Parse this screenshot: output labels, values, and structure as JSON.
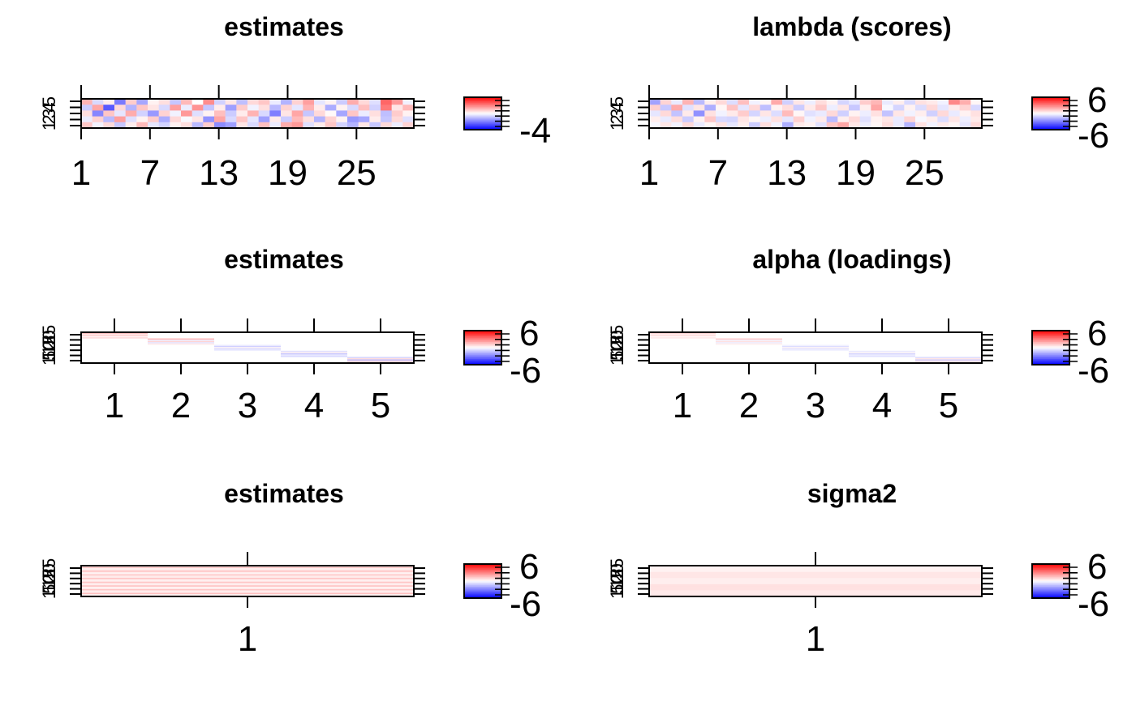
{
  "figure": {
    "colorscale": {
      "low": "#0000ff",
      "mid": "#ffffff",
      "high": "#ff0000"
    }
  },
  "chart_data": [
    {
      "type": "heatmap",
      "title": "estimates",
      "xlabel": "",
      "ylabel": "",
      "x_ticks": [
        "1",
        "7",
        "13",
        "19",
        "25"
      ],
      "x_tick_positions": [
        1,
        7,
        13,
        19,
        25
      ],
      "x_range": [
        1,
        30
      ],
      "y_ticks": [
        "5",
        "4",
        "3",
        "2",
        "1"
      ],
      "y_range": [
        1,
        5
      ],
      "colorbar_labels": [
        "-4"
      ],
      "colorbar_range": [
        -4,
        4
      ],
      "n_cols": 30,
      "n_rows": 5,
      "values": [
        [
          1.2,
          -0.6,
          0.3,
          -2.1,
          0.8,
          -1.4,
          0.2,
          0.5,
          -0.9,
          1.1,
          0.0,
          1.8,
          -0.7,
          0.4,
          -1.0,
          0.6,
          0.9,
          -0.3,
          -1.2,
          0.7,
          1.5,
          -0.4,
          0.2,
          -0.8,
          1.3,
          0.6,
          -0.5,
          2.4,
          1.6,
          -0.2
        ],
        [
          -0.8,
          1.4,
          -2.6,
          0.6,
          -1.2,
          0.9,
          0.4,
          -0.6,
          1.5,
          -0.3,
          1.7,
          -0.9,
          0.3,
          -1.5,
          0.8,
          -0.2,
          0.5,
          -1.1,
          0.7,
          -0.4,
          1.2,
          0.3,
          -1.3,
          0.2,
          -0.6,
          1.0,
          -0.7,
          2.1,
          0.4,
          1.1
        ],
        [
          0.5,
          -1.9,
          0.9,
          -0.4,
          1.3,
          -0.7,
          -1.6,
          0.7,
          -0.2,
          1.6,
          -0.5,
          0.2,
          1.0,
          -0.8,
          0.3,
          1.2,
          -0.6,
          -2.0,
          0.4,
          1.4,
          -0.9,
          0.6,
          0.1,
          -1.4,
          0.9,
          -0.3,
          0.5,
          -1.0,
          0.8,
          0.2
        ],
        [
          -0.3,
          0.7,
          -1.1,
          1.5,
          -0.5,
          0.2,
          0.8,
          -1.3,
          0.6,
          -0.1,
          0.4,
          -1.7,
          1.4,
          -0.6,
          0.9,
          -0.4,
          -1.5,
          0.3,
          -0.8,
          1.1,
          0.5,
          -1.2,
          0.7,
          0.2,
          -1.6,
          -1.4,
          0.3,
          -0.9,
          0.6,
          -0.5
        ],
        [
          0.9,
          -0.2,
          0.6,
          -0.9,
          0.3,
          1.1,
          -0.4,
          -0.7,
          0.2,
          0.5,
          -1.1,
          0.8,
          -1.8,
          -1.5,
          0.4,
          -0.6,
          1.0,
          -0.3,
          1.3,
          1.6,
          -0.5,
          0.3,
          0.9,
          -0.7,
          -1.2,
          0.4,
          -0.9,
          0.6,
          -0.3,
          0.7
        ]
      ]
    },
    {
      "type": "heatmap",
      "title": "lambda (scores)",
      "xlabel": "",
      "ylabel": "",
      "x_ticks": [
        "1",
        "7",
        "13",
        "19",
        "25"
      ],
      "x_tick_positions": [
        1,
        7,
        13,
        19,
        25
      ],
      "x_range": [
        1,
        30
      ],
      "y_ticks": [
        "5",
        "4",
        "3",
        "2",
        "1"
      ],
      "y_range": [
        1,
        5
      ],
      "colorbar_labels": [
        "6",
        "-6"
      ],
      "colorbar_range": [
        -6,
        6
      ],
      "n_cols": 30,
      "n_rows": 5,
      "values": [
        [
          -2.2,
          1.0,
          -0.5,
          1.8,
          -1.6,
          0.4,
          0.9,
          -0.8,
          1.5,
          -0.3,
          0.2,
          2.0,
          -1.1,
          0.6,
          -0.4,
          0.8,
          0.3,
          -1.0,
          -0.6,
          1.2,
          1.7,
          -0.5,
          0.4,
          -0.9,
          0.7,
          0.5,
          -0.3,
          2.8,
          1.9,
          0.2
        ],
        [
          1.1,
          -1.3,
          2.0,
          -0.7,
          0.6,
          -1.9,
          0.2,
          1.4,
          -0.6,
          0.9,
          -1.5,
          0.3,
          0.8,
          -1.2,
          0.5,
          1.3,
          -0.4,
          0.6,
          -1.3,
          0.4,
          2.1,
          -0.2,
          -1.0,
          0.3,
          -0.8,
          0.9,
          -0.6,
          0.5,
          1.0,
          -0.9
        ],
        [
          -0.6,
          0.9,
          -1.4,
          0.5,
          -2.6,
          0.7,
          -0.3,
          0.5,
          1.2,
          -1.0,
          0.6,
          -0.8,
          1.6,
          0.2,
          -0.7,
          -0.5,
          0.9,
          -1.1,
          0.3,
          -0.4,
          0.7,
          -1.4,
          0.6,
          -0.3,
          0.4,
          -1.1,
          0.9,
          -0.5,
          0.3,
          0.7
        ],
        [
          0.4,
          -0.5,
          0.8,
          -1.2,
          0.3,
          1.3,
          -0.9,
          -1.0,
          0.6,
          0.2,
          -0.4,
          0.7,
          -0.6,
          1.1,
          -0.3,
          0.5,
          -1.6,
          0.4,
          0.9,
          -0.7,
          0.3,
          0.6,
          -0.5,
          1.0,
          -0.2,
          0.4,
          -0.8,
          0.6,
          -0.4,
          0.5
        ],
        [
          -0.2,
          0.6,
          -0.3,
          0.9,
          -0.5,
          0.2,
          0.7,
          -0.6,
          0.4,
          -1.2,
          0.8,
          -0.3,
          -1.9,
          0.5,
          0.3,
          -0.7,
          1.4,
          2.1,
          0.6,
          -0.4,
          0.2,
          0.8,
          -0.5,
          -1.8,
          0.7,
          -0.3,
          0.5,
          0.2,
          -0.6,
          0.9
        ]
      ]
    },
    {
      "type": "heatmap",
      "title": "estimates",
      "xlabel": "",
      "ylabel": "",
      "x_ticks": [
        "1",
        "2",
        "3",
        "4",
        "5"
      ],
      "x_tick_positions": [
        1,
        2,
        3,
        4,
        5
      ],
      "x_range": [
        0.5,
        5.5
      ],
      "y_ticks": [
        "25",
        "20",
        "15",
        "10",
        "5",
        "1"
      ],
      "y_range": [
        1,
        25
      ],
      "colorbar_labels": [
        "6",
        "-6"
      ],
      "colorbar_range": [
        -6,
        6
      ],
      "diagonal_blocks": [
        {
          "column": 1,
          "rows": [
            1,
            5
          ],
          "values": [
            2.4,
            0.6,
            1.2,
            0.3,
            0.8
          ]
        },
        {
          "column": 2,
          "rows": [
            6,
            10
          ],
          "values": [
            1.8,
            -0.4,
            1.0,
            -0.6,
            0.5
          ]
        },
        {
          "column": 3,
          "rows": [
            11,
            15
          ],
          "values": [
            -0.3,
            -1.1,
            0.2,
            -0.9,
            -0.4
          ]
        },
        {
          "column": 4,
          "rows": [
            16,
            20
          ],
          "values": [
            -0.7,
            0.3,
            -1.3,
            -0.5,
            -0.9
          ]
        },
        {
          "column": 5,
          "rows": [
            21,
            25
          ],
          "values": [
            -1.0,
            0.8,
            -1.5,
            1.1,
            -0.6
          ]
        }
      ]
    },
    {
      "type": "heatmap",
      "title": "alpha (loadings)",
      "xlabel": "",
      "ylabel": "",
      "x_ticks": [
        "1",
        "2",
        "3",
        "4",
        "5"
      ],
      "x_tick_positions": [
        1,
        2,
        3,
        4,
        5
      ],
      "x_range": [
        0.5,
        5.5
      ],
      "y_ticks": [
        "25",
        "20",
        "15",
        "10",
        "5",
        "1"
      ],
      "y_range": [
        1,
        25
      ],
      "colorbar_labels": [
        "6",
        "-6"
      ],
      "colorbar_range": [
        -6,
        6
      ],
      "diagonal_blocks": [
        {
          "column": 1,
          "rows": [
            1,
            5
          ],
          "values": [
            1.6,
            0.4,
            0.9,
            0.2,
            0.5
          ]
        },
        {
          "column": 2,
          "rows": [
            6,
            10
          ],
          "values": [
            1.3,
            -0.3,
            0.7,
            -0.4,
            0.4
          ]
        },
        {
          "column": 3,
          "rows": [
            11,
            15
          ],
          "values": [
            -0.2,
            -0.8,
            0.2,
            -0.7,
            -0.3
          ]
        },
        {
          "column": 4,
          "rows": [
            16,
            20
          ],
          "values": [
            -0.5,
            0.2,
            -1.0,
            -0.4,
            -0.7
          ]
        },
        {
          "column": 5,
          "rows": [
            21,
            25
          ],
          "values": [
            -0.8,
            0.6,
            -1.1,
            0.8,
            -0.5
          ]
        }
      ]
    },
    {
      "type": "heatmap",
      "title": "estimates",
      "xlabel": "",
      "ylabel": "",
      "x_ticks": [
        "1"
      ],
      "x_tick_positions": [
        1
      ],
      "x_range": [
        0.5,
        1.5
      ],
      "y_ticks": [
        "25",
        "20",
        "15",
        "10",
        "5",
        "1"
      ],
      "y_range": [
        1,
        25
      ],
      "colorbar_labels": [
        "6",
        "-6"
      ],
      "colorbar_range": [
        -6,
        6
      ],
      "n_cols": 1,
      "n_rows": 25,
      "values": [
        [
          0.4
        ],
        [
          1.4
        ],
        [
          0.3
        ],
        [
          0.5
        ],
        [
          1.5
        ],
        [
          0.4
        ],
        [
          0.3
        ],
        [
          1.4
        ],
        [
          0.4
        ],
        [
          0.5
        ],
        [
          1.5
        ],
        [
          0.3
        ],
        [
          0.4
        ],
        [
          1.4
        ],
        [
          0.5
        ],
        [
          0.4
        ],
        [
          1.5
        ],
        [
          0.3
        ],
        [
          0.4
        ],
        [
          1.4
        ],
        [
          0.5
        ],
        [
          0.3
        ],
        [
          1.5
        ],
        [
          0.4
        ],
        [
          0.3
        ]
      ]
    },
    {
      "type": "heatmap",
      "title": "sigma2",
      "xlabel": "",
      "ylabel": "",
      "x_ticks": [
        "1"
      ],
      "x_tick_positions": [
        1
      ],
      "x_range": [
        0.5,
        1.5
      ],
      "y_ticks": [
        "25",
        "20",
        "15",
        "10",
        "5",
        "1"
      ],
      "y_range": [
        1,
        25
      ],
      "colorbar_labels": [
        "6",
        "-6"
      ],
      "colorbar_range": [
        -6,
        6
      ],
      "n_cols": 1,
      "n_rows": 25,
      "values": [
        [
          0.3
        ],
        [
          0.3
        ],
        [
          0.3
        ],
        [
          0.3
        ],
        [
          0.3
        ],
        [
          0.6
        ],
        [
          0.6
        ],
        [
          0.6
        ],
        [
          0.6
        ],
        [
          0.6
        ],
        [
          0.4
        ],
        [
          0.4
        ],
        [
          0.4
        ],
        [
          0.4
        ],
        [
          0.4
        ],
        [
          0.7
        ],
        [
          0.7
        ],
        [
          0.7
        ],
        [
          0.7
        ],
        [
          0.7
        ],
        [
          0.5
        ],
        [
          0.5
        ],
        [
          0.5
        ],
        [
          0.5
        ],
        [
          0.5
        ]
      ]
    }
  ]
}
